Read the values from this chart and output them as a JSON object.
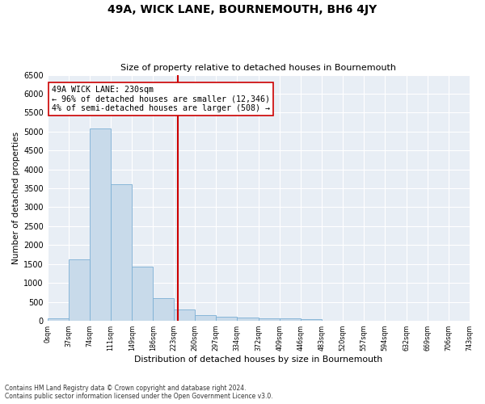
{
  "title": "49A, WICK LANE, BOURNEMOUTH, BH6 4JY",
  "subtitle": "Size of property relative to detached houses in Bournemouth",
  "xlabel": "Distribution of detached houses by size in Bournemouth",
  "ylabel": "Number of detached properties",
  "bar_color": "#c8daea",
  "bar_edge_color": "#7bafd4",
  "background_color": "#e8eef5",
  "property_line_x": 230,
  "property_line_color": "#cc0000",
  "annotation_text": "49A WICK LANE: 230sqm\n← 96% of detached houses are smaller (12,346)\n4% of semi-detached houses are larger (508) →",
  "annotation_box_color": "#ffffff",
  "annotation_box_edge": "#cc0000",
  "bin_edges": [
    0,
    37,
    74,
    111,
    149,
    186,
    223,
    260,
    297,
    334,
    372,
    409,
    446,
    483,
    520,
    557,
    594,
    632,
    669,
    706,
    743
  ],
  "bar_heights": [
    70,
    1630,
    5080,
    3600,
    1420,
    600,
    300,
    150,
    110,
    80,
    65,
    55,
    45,
    0,
    0,
    0,
    0,
    0,
    0,
    0
  ],
  "ylim": [
    0,
    6500
  ],
  "yticks": [
    0,
    500,
    1000,
    1500,
    2000,
    2500,
    3000,
    3500,
    4000,
    4500,
    5000,
    5500,
    6000,
    6500
  ],
  "footnote1": "Contains HM Land Registry data © Crown copyright and database right 2024.",
  "footnote2": "Contains public sector information licensed under the Open Government Licence v3.0."
}
